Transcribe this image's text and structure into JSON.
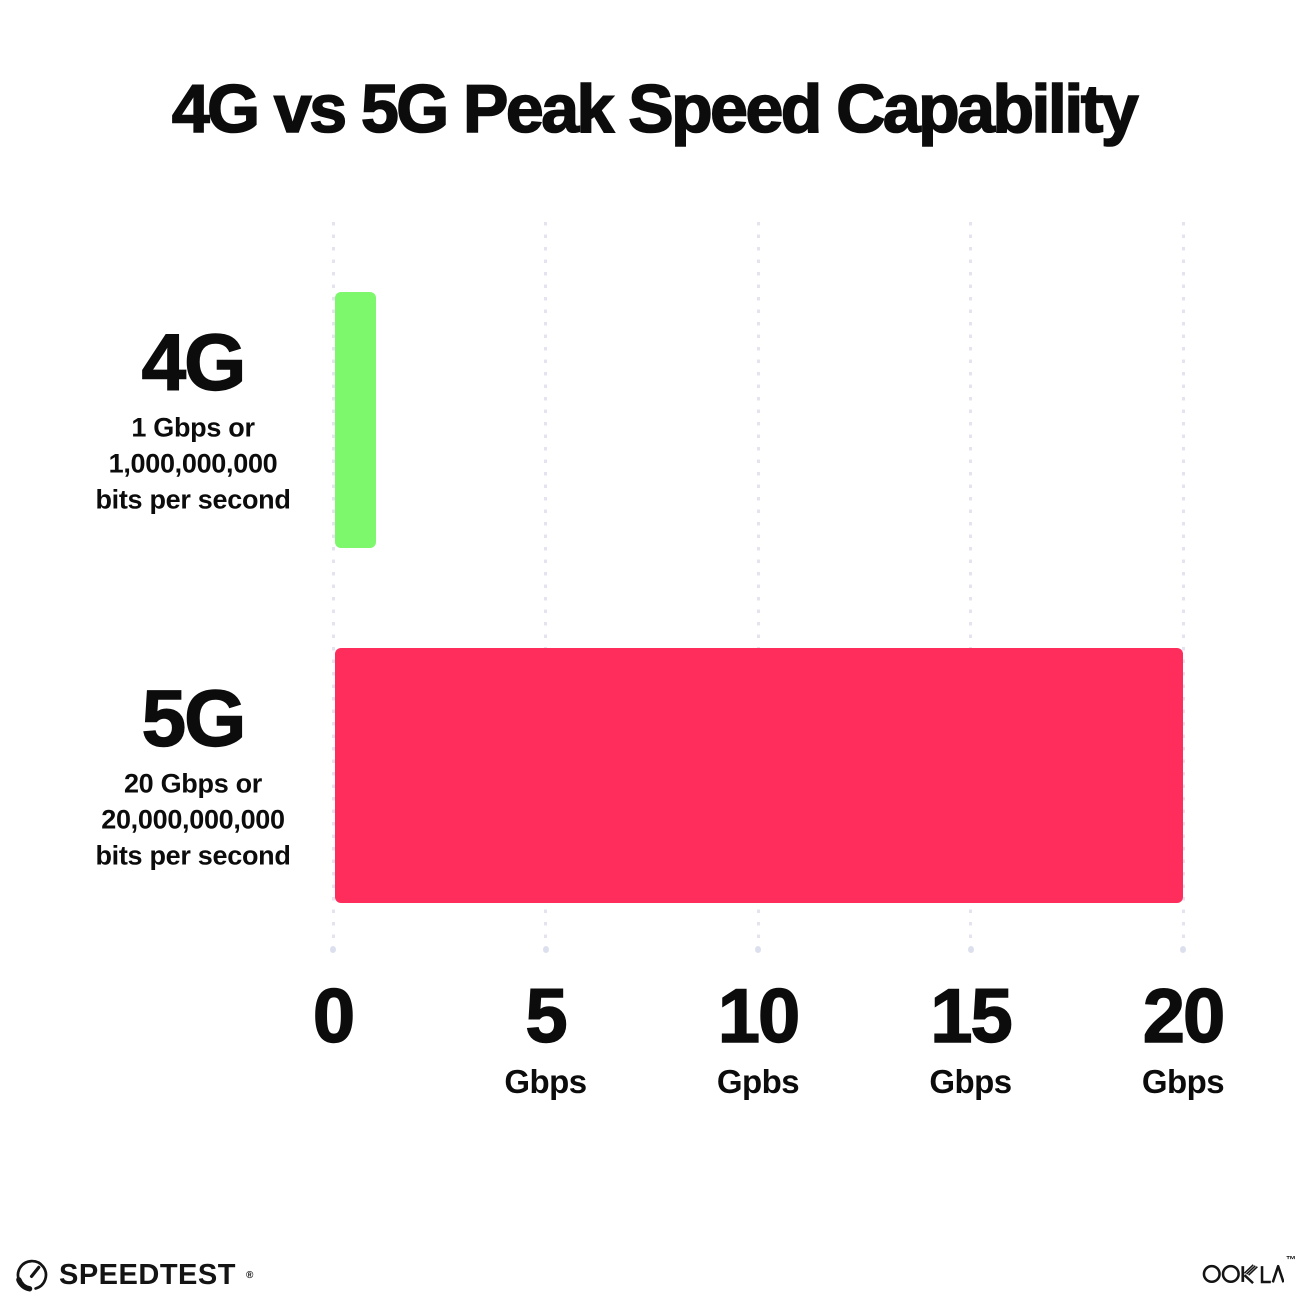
{
  "title": "4G vs 5G Peak Speed Capability",
  "chart_data": {
    "type": "bar",
    "orientation": "horizontal",
    "title": "4G vs 5G Peak Speed Capability",
    "categories": [
      "4G",
      "5G"
    ],
    "values": [
      1,
      20
    ],
    "value_unit": "Gbps",
    "xlim": [
      0,
      20
    ],
    "grid": "vertical dotted gridlines at each tick",
    "legend": "none",
    "bars": [
      {
        "label": "4G",
        "value": 1,
        "color": "#7DF76B",
        "sublabel_lines": [
          "1 Gbps or",
          "1,000,000,000",
          "bits per second"
        ]
      },
      {
        "label": "5G",
        "value": 20,
        "color": "#FF2D5B",
        "sublabel_lines": [
          "20 Gbps or",
          "20,000,000,000",
          "bits per second"
        ]
      }
    ],
    "x_ticks": [
      {
        "value": 0,
        "label": "0",
        "unit": ""
      },
      {
        "value": 5,
        "label": "5",
        "unit": "Gbps"
      },
      {
        "value": 10,
        "label": "10",
        "unit": "Gpbs"
      },
      {
        "value": 15,
        "label": "15",
        "unit": "Gbps"
      },
      {
        "value": 20,
        "label": "20",
        "unit": "Gbps"
      }
    ]
  },
  "footer": {
    "speedtest_label": "SPEEDTEST",
    "speedtest_trademark": "®",
    "ookla_label": "OOKLA",
    "ookla_trademark": "™"
  },
  "colors": {
    "bar_4g": "#7DF76B",
    "bar_5g": "#FF2D5B",
    "text": "#0C0C0C",
    "gridline": "#E4E4F1",
    "background": "#FFFFFF"
  }
}
